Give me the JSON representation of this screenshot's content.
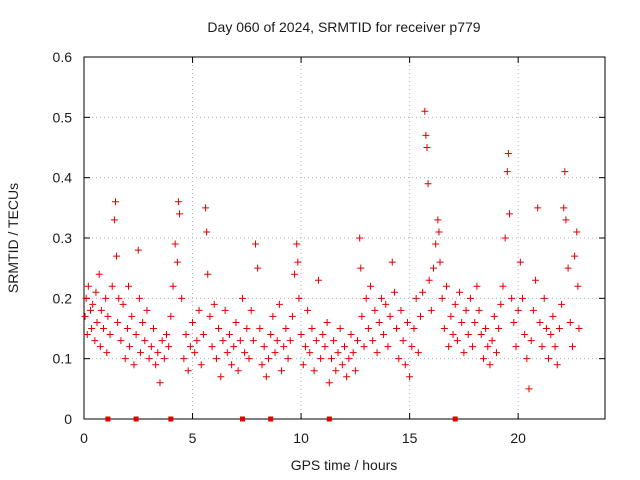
{
  "chart_data": {
    "type": "scatter",
    "title": "Day 060 of 2024, SRMTID for receiver p779",
    "xlabel": "GPS time / hours",
    "ylabel": "SRMTID / TECUs",
    "xlim": [
      0,
      24
    ],
    "ylim": [
      0,
      0.6
    ],
    "grid": true,
    "xticks": [
      0,
      5,
      10,
      15,
      20
    ],
    "xtick_labels": [
      "0",
      "5",
      "10",
      "15",
      "20"
    ],
    "yticks": [
      0,
      0.1,
      0.2,
      0.3,
      0.4,
      0.5,
      0.6
    ],
    "ytick_labels": [
      "0",
      "0.1",
      "0.2",
      "0.3",
      "0.4",
      "0.5",
      "0.6"
    ],
    "marker": "+",
    "color": "#e00000",
    "points": [
      [
        0.05,
        0.17
      ],
      [
        0.1,
        0.2
      ],
      [
        0.15,
        0.14
      ],
      [
        0.2,
        0.22
      ],
      [
        0.3,
        0.18
      ],
      [
        0.35,
        0.15
      ],
      [
        0.4,
        0.19
      ],
      [
        0.5,
        0.13
      ],
      [
        0.55,
        0.21
      ],
      [
        0.6,
        0.16
      ],
      [
        0.7,
        0.24
      ],
      [
        0.75,
        0.12
      ],
      [
        0.8,
        0.18
      ],
      [
        0.9,
        0.15
      ],
      [
        1.0,
        0.2
      ],
      [
        1.05,
        0.11
      ],
      [
        1.1,
        0.17
      ],
      [
        1.2,
        0.14
      ],
      [
        1.3,
        0.22
      ],
      [
        1.4,
        0.33
      ],
      [
        1.45,
        0.36
      ],
      [
        1.5,
        0.27
      ],
      [
        1.55,
        0.16
      ],
      [
        1.6,
        0.2
      ],
      [
        1.7,
        0.13
      ],
      [
        1.8,
        0.19
      ],
      [
        1.9,
        0.1
      ],
      [
        2.0,
        0.15
      ],
      [
        2.05,
        0.22
      ],
      [
        2.1,
        0.12
      ],
      [
        2.2,
        0.17
      ],
      [
        2.3,
        0.09
      ],
      [
        2.4,
        0.14
      ],
      [
        2.5,
        0.28
      ],
      [
        2.55,
        0.2
      ],
      [
        2.6,
        0.11
      ],
      [
        2.7,
        0.16
      ],
      [
        2.8,
        0.13
      ],
      [
        2.9,
        0.18
      ],
      [
        3.0,
        0.1
      ],
      [
        3.1,
        0.12
      ],
      [
        3.2,
        0.15
      ],
      [
        3.3,
        0.09
      ],
      [
        3.4,
        0.11
      ],
      [
        3.5,
        0.06
      ],
      [
        3.6,
        0.13
      ],
      [
        3.7,
        0.1
      ],
      [
        3.8,
        0.14
      ],
      [
        3.9,
        0.12
      ],
      [
        4.0,
        0.17
      ],
      [
        4.1,
        0.22
      ],
      [
        4.2,
        0.29
      ],
      [
        4.3,
        0.26
      ],
      [
        4.35,
        0.36
      ],
      [
        4.4,
        0.34
      ],
      [
        4.5,
        0.2
      ],
      [
        4.6,
        0.1
      ],
      [
        4.7,
        0.14
      ],
      [
        4.8,
        0.08
      ],
      [
        4.9,
        0.12
      ],
      [
        5.0,
        0.16
      ],
      [
        5.1,
        0.11
      ],
      [
        5.2,
        0.13
      ],
      [
        5.3,
        0.18
      ],
      [
        5.4,
        0.09
      ],
      [
        5.5,
        0.14
      ],
      [
        5.6,
        0.35
      ],
      [
        5.65,
        0.31
      ],
      [
        5.7,
        0.24
      ],
      [
        5.8,
        0.17
      ],
      [
        5.9,
        0.12
      ],
      [
        6.0,
        0.19
      ],
      [
        6.1,
        0.1
      ],
      [
        6.2,
        0.15
      ],
      [
        6.3,
        0.07
      ],
      [
        6.4,
        0.13
      ],
      [
        6.5,
        0.18
      ],
      [
        6.6,
        0.11
      ],
      [
        6.7,
        0.14
      ],
      [
        6.8,
        0.09
      ],
      [
        6.9,
        0.12
      ],
      [
        7.0,
        0.16
      ],
      [
        7.1,
        0.08
      ],
      [
        7.2,
        0.13
      ],
      [
        7.3,
        0.2
      ],
      [
        7.4,
        0.11
      ],
      [
        7.5,
        0.15
      ],
      [
        7.6,
        0.1
      ],
      [
        7.7,
        0.18
      ],
      [
        7.8,
        0.13
      ],
      [
        7.9,
        0.29
      ],
      [
        8.0,
        0.25
      ],
      [
        8.1,
        0.15
      ],
      [
        8.2,
        0.09
      ],
      [
        8.3,
        0.12
      ],
      [
        8.4,
        0.07
      ],
      [
        8.5,
        0.1
      ],
      [
        8.6,
        0.14
      ],
      [
        8.7,
        0.17
      ],
      [
        8.8,
        0.11
      ],
      [
        8.9,
        0.13
      ],
      [
        9.0,
        0.19
      ],
      [
        9.1,
        0.08
      ],
      [
        9.2,
        0.12
      ],
      [
        9.3,
        0.15
      ],
      [
        9.4,
        0.1
      ],
      [
        9.5,
        0.13
      ],
      [
        9.6,
        0.17
      ],
      [
        9.7,
        0.24
      ],
      [
        9.8,
        0.29
      ],
      [
        9.85,
        0.26
      ],
      [
        9.9,
        0.2
      ],
      [
        10.0,
        0.14
      ],
      [
        10.1,
        0.09
      ],
      [
        10.2,
        0.12
      ],
      [
        10.3,
        0.18
      ],
      [
        10.4,
        0.11
      ],
      [
        10.5,
        0.15
      ],
      [
        10.6,
        0.08
      ],
      [
        10.7,
        0.13
      ],
      [
        10.8,
        0.23
      ],
      [
        10.9,
        0.1
      ],
      [
        11.0,
        0.14
      ],
      [
        11.1,
        0.12
      ],
      [
        11.2,
        0.16
      ],
      [
        11.3,
        0.06
      ],
      [
        11.4,
        0.1
      ],
      [
        11.5,
        0.13
      ],
      [
        11.6,
        0.08
      ],
      [
        11.7,
        0.11
      ],
      [
        11.8,
        0.15
      ],
      [
        11.9,
        0.09
      ],
      [
        12.0,
        0.12
      ],
      [
        12.1,
        0.07
      ],
      [
        12.2,
        0.1
      ],
      [
        12.3,
        0.14
      ],
      [
        12.4,
        0.11
      ],
      [
        12.5,
        0.08
      ],
      [
        12.6,
        0.13
      ],
      [
        12.7,
        0.3
      ],
      [
        12.75,
        0.25
      ],
      [
        12.8,
        0.17
      ],
      [
        12.9,
        0.12
      ],
      [
        13.0,
        0.2
      ],
      [
        13.1,
        0.15
      ],
      [
        13.2,
        0.22
      ],
      [
        13.3,
        0.13
      ],
      [
        13.4,
        0.18
      ],
      [
        13.5,
        0.11
      ],
      [
        13.6,
        0.16
      ],
      [
        13.7,
        0.2
      ],
      [
        13.8,
        0.14
      ],
      [
        13.9,
        0.19
      ],
      [
        14.0,
        0.12
      ],
      [
        14.1,
        0.17
      ],
      [
        14.2,
        0.26
      ],
      [
        14.3,
        0.21
      ],
      [
        14.4,
        0.15
      ],
      [
        14.5,
        0.1
      ],
      [
        14.6,
        0.18
      ],
      [
        14.7,
        0.13
      ],
      [
        14.8,
        0.09
      ],
      [
        14.9,
        0.16
      ],
      [
        15.0,
        0.07
      ],
      [
        15.1,
        0.12
      ],
      [
        15.2,
        0.15
      ],
      [
        15.3,
        0.2
      ],
      [
        15.4,
        0.11
      ],
      [
        15.5,
        0.17
      ],
      [
        15.6,
        0.21
      ],
      [
        15.7,
        0.51
      ],
      [
        15.75,
        0.47
      ],
      [
        15.8,
        0.45
      ],
      [
        15.85,
        0.39
      ],
      [
        15.9,
        0.23
      ],
      [
        16.0,
        0.18
      ],
      [
        16.1,
        0.25
      ],
      [
        16.2,
        0.29
      ],
      [
        16.3,
        0.33
      ],
      [
        16.35,
        0.31
      ],
      [
        16.4,
        0.26
      ],
      [
        16.5,
        0.2
      ],
      [
        16.6,
        0.15
      ],
      [
        16.7,
        0.22
      ],
      [
        16.8,
        0.12
      ],
      [
        16.9,
        0.17
      ],
      [
        17.0,
        0.14
      ],
      [
        17.1,
        0.19
      ],
      [
        17.2,
        0.13
      ],
      [
        17.3,
        0.21
      ],
      [
        17.4,
        0.16
      ],
      [
        17.5,
        0.11
      ],
      [
        17.6,
        0.18
      ],
      [
        17.7,
        0.14
      ],
      [
        17.8,
        0.2
      ],
      [
        17.9,
        0.12
      ],
      [
        18.0,
        0.16
      ],
      [
        18.1,
        0.22
      ],
      [
        18.2,
        0.18
      ],
      [
        18.3,
        0.14
      ],
      [
        18.4,
        0.1
      ],
      [
        18.5,
        0.15
      ],
      [
        18.6,
        0.12
      ],
      [
        18.7,
        0.09
      ],
      [
        18.8,
        0.13
      ],
      [
        18.9,
        0.17
      ],
      [
        19.0,
        0.11
      ],
      [
        19.1,
        0.15
      ],
      [
        19.2,
        0.19
      ],
      [
        19.3,
        0.22
      ],
      [
        19.4,
        0.3
      ],
      [
        19.5,
        0.41
      ],
      [
        19.55,
        0.44
      ],
      [
        19.6,
        0.34
      ],
      [
        19.7,
        0.2
      ],
      [
        19.8,
        0.16
      ],
      [
        19.9,
        0.12
      ],
      [
        20.0,
        0.18
      ],
      [
        20.1,
        0.26
      ],
      [
        20.2,
        0.2
      ],
      [
        20.3,
        0.14
      ],
      [
        20.4,
        0.1
      ],
      [
        20.5,
        0.05
      ],
      [
        20.6,
        0.13
      ],
      [
        20.7,
        0.18
      ],
      [
        20.8,
        0.23
      ],
      [
        20.9,
        0.35
      ],
      [
        21.0,
        0.16
      ],
      [
        21.1,
        0.12
      ],
      [
        21.2,
        0.2
      ],
      [
        21.3,
        0.15
      ],
      [
        21.4,
        0.1
      ],
      [
        21.5,
        0.14
      ],
      [
        21.6,
        0.17
      ],
      [
        21.7,
        0.12
      ],
      [
        21.8,
        0.09
      ],
      [
        21.9,
        0.15
      ],
      [
        22.0,
        0.19
      ],
      [
        22.1,
        0.35
      ],
      [
        22.15,
        0.41
      ],
      [
        22.2,
        0.33
      ],
      [
        22.3,
        0.25
      ],
      [
        22.4,
        0.16
      ],
      [
        22.5,
        0.12
      ],
      [
        22.6,
        0.27
      ],
      [
        22.7,
        0.31
      ],
      [
        22.75,
        0.22
      ],
      [
        22.8,
        0.15
      ]
    ],
    "zero_markers_x": [
      1.1,
      2.4,
      4.0,
      7.3,
      8.6,
      11.3,
      17.1
    ]
  }
}
